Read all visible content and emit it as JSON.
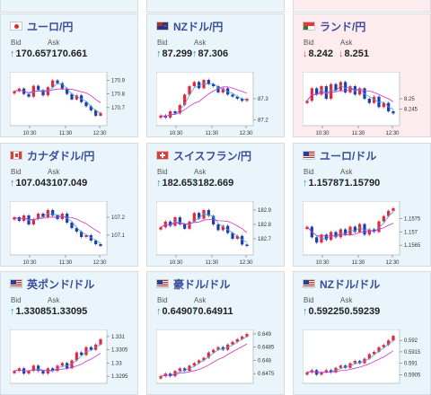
{
  "colors": {
    "tile_up": "#eaf5fb",
    "tile_down": "#fcecee",
    "title": "#3a4c9c",
    "arrow_up": "#2a8fd0",
    "arrow_down": "#e0435c",
    "candle_up": "#e3273d",
    "candle_down": "#1f3da8",
    "ma_short": "#42a4df",
    "ma_long": "#cc33cc"
  },
  "labels": {
    "bid": "Bid",
    "ask": "Ask"
  },
  "tiles": [
    {
      "pair": "ユーロ/円",
      "flag": "jp-flag-icon",
      "direction": "up",
      "arrow": "↑",
      "bid": "170.657",
      "ask": "170.661",
      "chart_data": {
        "type": "candlestick",
        "x_ticks": [
          "10:30",
          "11:30",
          "12:30"
        ],
        "y_ticks": [
          "170.9",
          "170.8",
          "170.7"
        ],
        "ylim": [
          170.58,
          170.95
        ],
        "values": [
          170.82,
          170.84,
          170.8,
          170.78,
          170.86,
          170.83,
          170.79,
          170.85,
          170.9,
          170.88,
          170.84,
          170.8,
          170.76,
          170.79,
          170.74,
          170.71,
          170.68,
          170.64,
          170.66
        ]
      }
    },
    {
      "pair": "NZドル/円",
      "flag": "nz-flag-icon",
      "direction": "up",
      "arrow": "↑",
      "bid": "87.299",
      "ask": "87.306",
      "chart_data": {
        "type": "candlestick",
        "x_ticks": [
          "10:30",
          "11:30",
          "12:30"
        ],
        "y_ticks": [
          "87.3",
          "87.2"
        ],
        "ylim": [
          87.18,
          87.42
        ],
        "values": [
          87.22,
          87.21,
          87.24,
          87.23,
          87.27,
          87.32,
          87.36,
          87.38,
          87.35,
          87.39,
          87.37,
          87.36,
          87.33,
          87.35,
          87.32,
          87.31,
          87.3,
          87.29,
          87.3
        ]
      }
    },
    {
      "pair": "ランド/円",
      "flag": "za-flag-icon",
      "direction": "down",
      "arrow": "↓",
      "bid": "8.242",
      "ask": "8.251",
      "chart_data": {
        "type": "candlestick",
        "x_ticks": [
          "10:30",
          "11:30",
          "12:30"
        ],
        "y_ticks": [
          "8.25",
          "8.245"
        ],
        "ylim": [
          8.238,
          8.262
        ],
        "values": [
          8.249,
          8.255,
          8.252,
          8.256,
          8.25,
          8.257,
          8.254,
          8.258,
          8.253,
          8.256,
          8.252,
          8.255,
          8.25,
          8.248,
          8.251,
          8.246,
          8.248,
          8.244,
          8.243
        ]
      }
    },
    {
      "pair": "カナダドル/円",
      "flag": "ca-flag-icon",
      "direction": "up",
      "arrow": "↑",
      "bid": "107.043",
      "ask": "107.049",
      "chart_data": {
        "type": "candlestick",
        "x_ticks": [
          "10:30",
          "11:30",
          "12:30"
        ],
        "y_ticks": [
          "107.2",
          "107.1"
        ],
        "ylim": [
          107.0,
          107.28
        ],
        "values": [
          107.2,
          107.18,
          107.21,
          107.16,
          107.19,
          107.22,
          107.2,
          107.24,
          107.21,
          107.19,
          107.22,
          107.17,
          107.14,
          107.12,
          107.09,
          107.1,
          107.07,
          107.05,
          107.04
        ]
      }
    },
    {
      "pair": "スイスフラン/円",
      "flag": "ch-flag-icon",
      "direction": "up",
      "arrow": "↑",
      "bid": "182.653",
      "ask": "182.669",
      "chart_data": {
        "type": "candlestick",
        "x_ticks": [
          "10:30",
          "11:30",
          "12:30"
        ],
        "y_ticks": [
          "182.9",
          "182.8",
          "182.7"
        ],
        "ylim": [
          182.6,
          182.95
        ],
        "values": [
          182.78,
          182.82,
          182.79,
          182.85,
          182.8,
          182.77,
          182.82,
          182.88,
          182.84,
          182.9,
          182.86,
          182.8,
          182.76,
          182.79,
          182.74,
          182.7,
          182.72,
          182.66,
          182.65
        ]
      }
    },
    {
      "pair": "ユーロ/ドル",
      "flag": "eu-us-flag-icon",
      "direction": "up",
      "arrow": "↑",
      "bid": "1.15787",
      "ask": "1.15790",
      "chart_data": {
        "type": "candlestick",
        "x_ticks": [
          "10:30",
          "11:30",
          "12:30"
        ],
        "y_ticks": [
          "1.1575",
          "1.157",
          "1.1565"
        ],
        "ylim": [
          1.1562,
          1.1581
        ],
        "values": [
          1.1572,
          1.1568,
          1.1566,
          1.1569,
          1.1567,
          1.157,
          1.1568,
          1.1571,
          1.1569,
          1.1572,
          1.157,
          1.1573,
          1.1569,
          1.1571,
          1.157,
          1.1574,
          1.1576,
          1.1578,
          1.1579
        ]
      }
    },
    {
      "pair": "英ポンド/ドル",
      "flag": "gb-us-flag-icon",
      "direction": "up",
      "arrow": "↑",
      "bid": "1.33085",
      "ask": "1.33095",
      "chart_data": {
        "type": "candlestick",
        "x_ticks": [],
        "y_ticks": [
          "1.331",
          "1.3305",
          "1.33",
          "1.3295"
        ],
        "ylim": [
          1.3293,
          1.3312
        ],
        "values": [
          1.3297,
          1.3298,
          1.3296,
          1.3297,
          1.3299,
          1.3297,
          1.3296,
          1.3298,
          1.3297,
          1.3299,
          1.33,
          1.3298,
          1.3301,
          1.3304,
          1.3303,
          1.3306,
          1.3305,
          1.3307,
          1.3309
        ]
      }
    },
    {
      "pair": "豪ドル/ドル",
      "flag": "au-us-flag-icon",
      "direction": "up",
      "arrow": "↑",
      "bid": "0.64907",
      "ask": "0.64911",
      "chart_data": {
        "type": "candlestick",
        "x_ticks": [],
        "y_ticks": [
          "0.649",
          "0.6485",
          "0.648",
          "0.6475"
        ],
        "ylim": [
          0.6472,
          0.6491
        ],
        "values": [
          0.6474,
          0.6475,
          0.6474,
          0.6476,
          0.6477,
          0.6476,
          0.6478,
          0.6479,
          0.648,
          0.6481,
          0.6483,
          0.6484,
          0.6485,
          0.6484,
          0.6486,
          0.6487,
          0.6488,
          0.6489,
          0.649
        ]
      }
    },
    {
      "pair": "NZドル/ドル",
      "flag": "nz-us-flag-icon",
      "direction": "up",
      "arrow": "↑",
      "bid": "0.59225",
      "ask": "0.59239",
      "chart_data": {
        "type": "candlestick",
        "x_ticks": [],
        "y_ticks": [
          "0.592",
          "0.5915",
          "0.591",
          "0.5905"
        ],
        "ylim": [
          0.5902,
          0.5924
        ],
        "values": [
          0.5906,
          0.5907,
          0.5905,
          0.5906,
          0.5907,
          0.5906,
          0.5908,
          0.5909,
          0.5908,
          0.591,
          0.5911,
          0.591,
          0.5912,
          0.5914,
          0.5915,
          0.5917,
          0.5918,
          0.592,
          0.5922
        ]
      }
    }
  ]
}
